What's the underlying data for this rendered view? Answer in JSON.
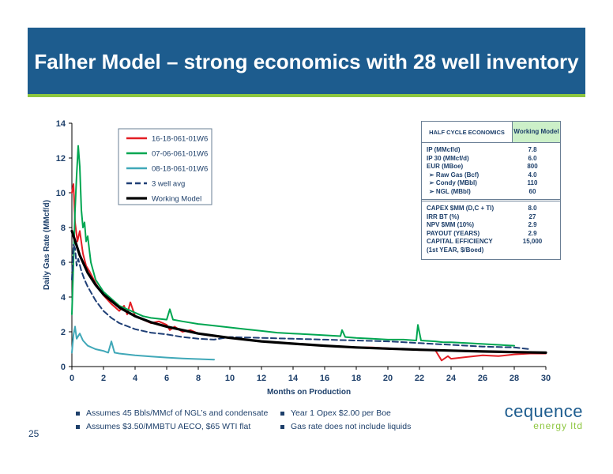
{
  "title": "Falher Model – strong economics with 28 well inventory",
  "page_number": "25",
  "colors": {
    "banner": "#1d5c8e",
    "accent": "#8dc63f",
    "text": "#1d3f6a"
  },
  "chart_data": {
    "type": "line",
    "title": "",
    "xlabel": "Months on Production",
    "ylabel": "Daily Gas Rate (MMcf/d)",
    "xlim": [
      0,
      30
    ],
    "ylim": [
      0,
      14
    ],
    "xticks": [
      0,
      2,
      4,
      6,
      8,
      10,
      12,
      14,
      16,
      18,
      20,
      22,
      24,
      26,
      28,
      30
    ],
    "yticks": [
      0,
      2,
      4,
      6,
      8,
      10,
      12,
      14
    ],
    "grid": false,
    "legend_position": "top-left",
    "series": [
      {
        "name": "16-18-061-01W6",
        "color": "#e31e24",
        "style": "solid",
        "x": [
          0,
          0.1,
          0.2,
          0.35,
          0.5,
          0.7,
          0.9,
          1.1,
          1.5,
          2,
          2.5,
          3,
          3.3,
          3.5,
          3.7,
          4,
          4.5,
          5,
          5.5,
          6,
          6.2,
          6.5,
          7,
          7.5,
          8,
          9,
          10,
          11,
          12,
          13,
          14,
          15,
          16,
          17,
          18,
          19,
          20,
          21,
          22,
          23,
          23.4,
          23.8,
          24,
          25,
          26,
          27,
          28,
          29,
          30
        ],
        "y": [
          10,
          10.5,
          8.3,
          7.2,
          7.8,
          6.5,
          5.8,
          5.5,
          4.8,
          4.1,
          3.6,
          3.2,
          3.5,
          3.0,
          3.7,
          2.9,
          2.7,
          2.5,
          2.6,
          2.4,
          2.1,
          2.3,
          2.0,
          2.1,
          1.9,
          1.75,
          1.65,
          1.55,
          1.45,
          1.4,
          1.3,
          1.25,
          1.2,
          1.15,
          1.1,
          1.1,
          1.05,
          1.0,
          0.95,
          0.95,
          0.35,
          0.6,
          0.45,
          0.55,
          0.65,
          0.6,
          0.7,
          0.75,
          0.75
        ]
      },
      {
        "name": "07-06-061-01W6",
        "color": "#00a651",
        "style": "solid",
        "x": [
          0,
          0.1,
          0.2,
          0.3,
          0.4,
          0.5,
          0.6,
          0.7,
          0.8,
          0.9,
          1,
          1.2,
          1.5,
          2,
          2.5,
          3,
          3.5,
          4,
          4.5,
          5,
          5.5,
          6,
          6.2,
          6.4,
          7,
          8,
          9,
          10,
          11,
          12,
          13,
          14,
          15,
          16,
          17,
          17.1,
          17.3,
          18,
          19,
          20,
          21,
          21.8,
          21.9,
          22.1,
          23,
          23.5,
          24,
          25,
          26,
          27,
          28
        ],
        "y": [
          3,
          6,
          9,
          11,
          12.7,
          11.5,
          9,
          8,
          8.3,
          7.2,
          7.5,
          6,
          5,
          4.3,
          3.9,
          3.5,
          3.3,
          3.1,
          2.9,
          2.8,
          2.75,
          2.7,
          3.3,
          2.7,
          2.6,
          2.45,
          2.35,
          2.25,
          2.15,
          2.05,
          1.95,
          1.9,
          1.85,
          1.8,
          1.75,
          2.1,
          1.7,
          1.65,
          1.6,
          1.55,
          1.55,
          1.5,
          2.4,
          1.5,
          1.45,
          1.4,
          1.4,
          1.35,
          1.3,
          1.25,
          1.2
        ]
      },
      {
        "name": "08-18-061-01W6",
        "color": "#40a8b8",
        "style": "solid",
        "x": [
          0,
          0.1,
          0.2,
          0.3,
          0.5,
          0.7,
          1,
          1.5,
          2,
          2.3,
          2.5,
          2.7,
          3,
          3.5,
          4,
          5,
          6,
          7,
          8,
          9
        ],
        "y": [
          0.8,
          1.8,
          2.3,
          1.6,
          1.9,
          1.5,
          1.2,
          1.0,
          0.9,
          0.8,
          1.45,
          0.8,
          0.75,
          0.7,
          0.65,
          0.58,
          0.52,
          0.47,
          0.43,
          0.4
        ]
      },
      {
        "name": "3 well avg",
        "color": "#1f3f76",
        "style": "dashed",
        "x": [
          0,
          0.1,
          0.2,
          0.3,
          0.4,
          0.6,
          0.8,
          1,
          1.5,
          2,
          2.5,
          3,
          4,
          5,
          6,
          7,
          8,
          9,
          10,
          12,
          14,
          16,
          18,
          20,
          22,
          24,
          26,
          28,
          29
        ],
        "y": [
          5,
          7,
          6.8,
          5.8,
          6.2,
          5.5,
          5,
          4.6,
          3.8,
          3.2,
          2.8,
          2.5,
          2.15,
          1.95,
          1.85,
          1.7,
          1.6,
          1.55,
          1.7,
          1.65,
          1.6,
          1.55,
          1.5,
          1.45,
          1.35,
          1.25,
          1.15,
          1.1,
          1.0
        ]
      },
      {
        "name": "Working Model",
        "color": "#000000",
        "style": "solid",
        "x": [
          0,
          0.25,
          0.5,
          1,
          1.5,
          2,
          3,
          4,
          5,
          6,
          7,
          8,
          10,
          12,
          14,
          16,
          18,
          20,
          22,
          24,
          26,
          28,
          30
        ],
        "y": [
          7.8,
          7.1,
          6.4,
          5.4,
          4.7,
          4.15,
          3.4,
          2.9,
          2.55,
          2.3,
          2.1,
          1.9,
          1.65,
          1.45,
          1.32,
          1.2,
          1.1,
          1.03,
          0.97,
          0.92,
          0.87,
          0.83,
          0.8
        ]
      }
    ]
  },
  "economics": {
    "header": "HALF CYCLE ECONOMICS",
    "value_header": "Working Model",
    "section1": [
      {
        "label": "IP (MMcf/d)",
        "value": "7.8",
        "sub": false
      },
      {
        "label": "IP 30 (MMcf/d)",
        "value": "6.0",
        "sub": false
      },
      {
        "label": "EUR (MBoe)",
        "value": "800",
        "sub": false
      },
      {
        "label": "➢  Raw Gas (Bcf)",
        "value": "4.0",
        "sub": true
      },
      {
        "label": "➢  Condy (MBbl)",
        "value": "110",
        "sub": true
      },
      {
        "label": "➢  NGL (MBbl)",
        "value": "60",
        "sub": true
      }
    ],
    "section2": [
      {
        "label": "CAPEX $MM (D,C + TI)",
        "value": "8.0"
      },
      {
        "label": "IRR BT (%)",
        "value": "27"
      },
      {
        "label": "NPV $MM (10%)",
        "value": "2.9"
      },
      {
        "label": "PAYOUT (YEARS)",
        "value": "2.9"
      },
      {
        "label": "CAPITAL EFFICIENCY",
        "value": "15,000"
      },
      {
        "label": "(1st YEAR, $/Boed)",
        "value": ""
      }
    ]
  },
  "notes": {
    "left": [
      "Assumes 45 Bbls/MMcf of NGL’s and condensate",
      "Assumes $3.50/MMBTU AECO, $65 WTI flat"
    ],
    "right": [
      "Year 1 Opex $2.00 per Boe",
      "Gas rate does not include liquids"
    ]
  },
  "logo": {
    "main": "cequence",
    "sub": "energy ltd"
  }
}
